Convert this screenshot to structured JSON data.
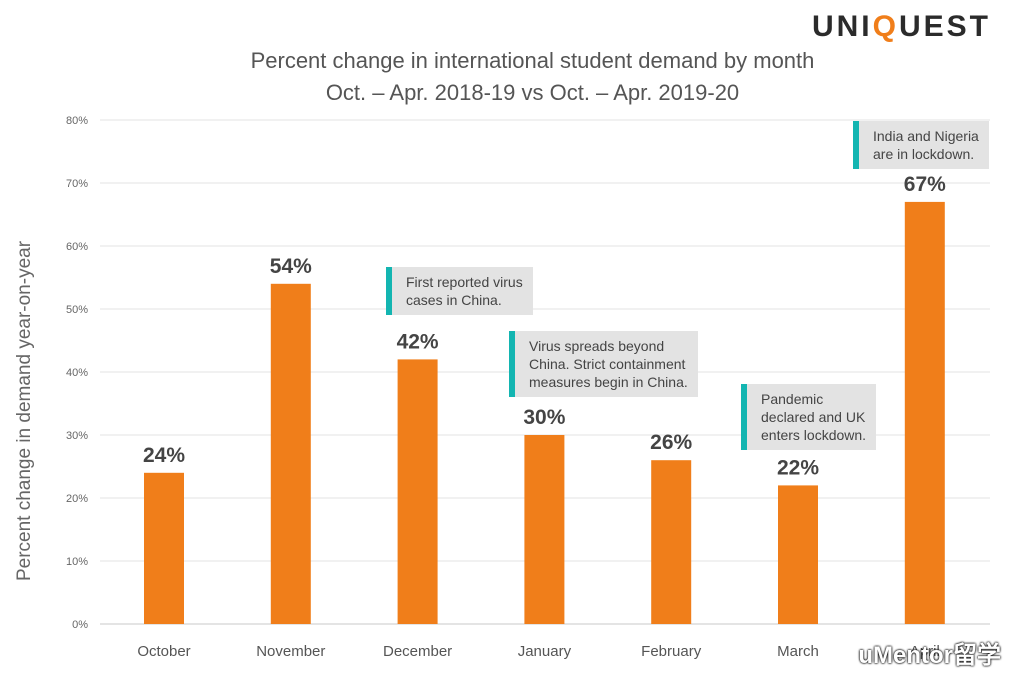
{
  "logo": {
    "before": "UNI",
    "highlight": "Q",
    "after": "UEST"
  },
  "watermark": "uMentor留学",
  "chart_data": {
    "type": "bar",
    "title": "Percent change in international student demand by month",
    "subtitle": "Oct. – Apr. 2018-19 vs Oct. – Apr. 2019-20",
    "xlabel": "",
    "ylabel": "Percent change in demand year-on-year",
    "categories": [
      "October",
      "November",
      "December",
      "January",
      "February",
      "March",
      "April"
    ],
    "values": [
      24,
      54,
      42,
      30,
      26,
      22,
      67
    ],
    "data_labels": [
      "24%",
      "54%",
      "42%",
      "30%",
      "26%",
      "22%",
      "67%"
    ],
    "ylim": [
      0,
      80
    ],
    "yticks": [
      0,
      10,
      20,
      30,
      40,
      50,
      60,
      70,
      80
    ],
    "ytick_labels": [
      "0%",
      "10%",
      "20%",
      "30%",
      "40%",
      "50%",
      "60%",
      "70%",
      "80%"
    ],
    "grid": true,
    "bar_color": "#f07e1a",
    "annotations": [
      {
        "category": "December",
        "text": [
          "First reported virus",
          "cases in China."
        ]
      },
      {
        "category": "January",
        "text": [
          "Virus spreads beyond",
          "China. Strict containment",
          "measures begin in China."
        ]
      },
      {
        "category": "March",
        "text": [
          "Pandemic",
          "declared and UK",
          "enters lockdown."
        ]
      },
      {
        "category": "April",
        "text": [
          "India and Nigeria",
          "are in lockdown."
        ]
      }
    ],
    "annotation_accent": "#13b5b1"
  }
}
